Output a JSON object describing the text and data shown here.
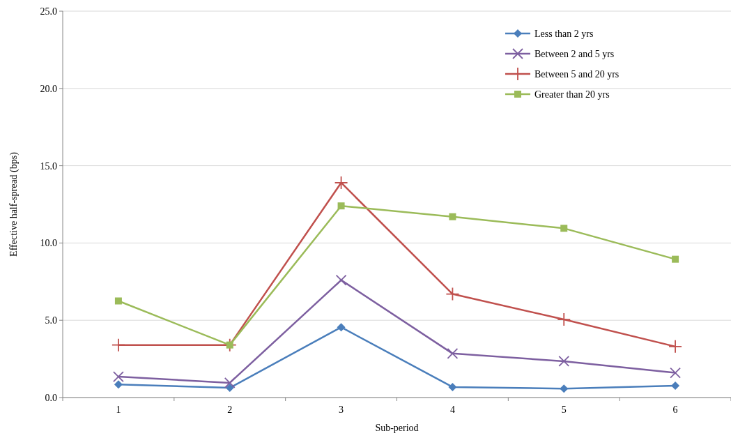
{
  "chart_data": {
    "type": "line",
    "xlabel": "Sub-period",
    "ylabel": "Effective half-spread (bps)",
    "categories": [
      "1",
      "2",
      "3",
      "4",
      "5",
      "6"
    ],
    "ylim": [
      0,
      25
    ],
    "yticks": [
      {
        "value": 0,
        "label": "0.0"
      },
      {
        "value": 5,
        "label": "5.0"
      },
      {
        "value": 10,
        "label": "10.0"
      },
      {
        "value": 15,
        "label": "15.0"
      },
      {
        "value": 20,
        "label": "20.0"
      },
      {
        "value": 25,
        "label": "25.0"
      }
    ],
    "grid": "y",
    "legend": "top right",
    "series": [
      {
        "name": "Less than 2 yrs",
        "color": "#4a7ebb",
        "marker": "diamond",
        "values": [
          0.85,
          0.63,
          4.55,
          0.68,
          0.58,
          0.77
        ]
      },
      {
        "name": "Between 2 and 5 yrs",
        "color": "#7d5fa0",
        "marker": "cross",
        "values": [
          1.35,
          0.95,
          7.6,
          2.85,
          2.35,
          1.6
        ]
      },
      {
        "name": "Between 5 and 20 yrs",
        "color": "#c0504d",
        "marker": "plus",
        "values": [
          3.4,
          3.4,
          13.9,
          6.7,
          5.05,
          3.3
        ]
      },
      {
        "name": "Greater than 20 yrs",
        "color": "#9bbb59",
        "marker": "square",
        "values": [
          6.25,
          3.4,
          12.4,
          11.7,
          10.95,
          8.95
        ]
      }
    ]
  }
}
